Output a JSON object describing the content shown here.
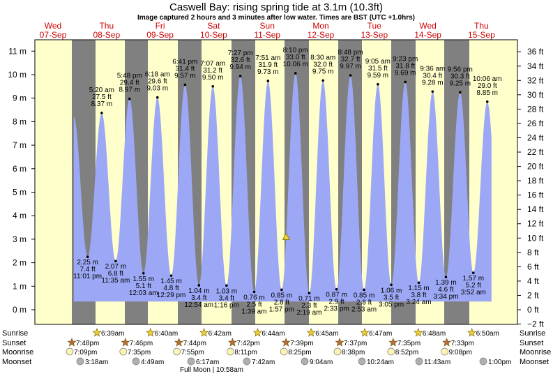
{
  "chart_data": {
    "type": "area",
    "title": "Caswell Bay: rising  spring tide at 3.1m (10.3ft)",
    "subtitle": "Image captured 2 hours and 3 minutes after low water. Times are BST (UTC +1.0hrs)",
    "ylim": [
      -0.6,
      11.4
    ],
    "y_ticks": [
      {
        "v": 0,
        "label": "0 m"
      },
      {
        "v": 1,
        "label": "1 m"
      },
      {
        "v": 2,
        "label": "2 m"
      },
      {
        "v": 3,
        "label": "3 m"
      },
      {
        "v": 4,
        "label": "4 m"
      },
      {
        "v": 5,
        "label": "5 m"
      },
      {
        "v": 6,
        "label": "6 m"
      },
      {
        "v": 7,
        "label": "7 m"
      },
      {
        "v": 8,
        "label": "8 m"
      },
      {
        "v": 9,
        "label": "9 m"
      },
      {
        "v": 10,
        "label": "10 m"
      },
      {
        "v": 11,
        "label": "11 m"
      }
    ],
    "ft_ticks": [
      "−2 ft",
      "0 ft",
      "2 ft",
      "4 ft",
      "6 ft",
      "8 ft",
      "10 ft",
      "12 ft",
      "14 ft",
      "16 ft",
      "18 ft",
      "20 ft",
      "22 ft",
      "24 ft",
      "26 ft",
      "28 ft",
      "30 ft",
      "32 ft",
      "34 ft",
      "36 ft"
    ],
    "days": [
      {
        "day": "Wed",
        "date": "07-Sep"
      },
      {
        "day": "Thu",
        "date": "08-Sep"
      },
      {
        "day": "Fri",
        "date": "09-Sep"
      },
      {
        "day": "Sat",
        "date": "10-Sep"
      },
      {
        "day": "Sun",
        "date": "11-Sep"
      },
      {
        "day": "Mon",
        "date": "12-Sep"
      },
      {
        "day": "Tue",
        "date": "13-Sep"
      },
      {
        "day": "Wed",
        "date": "14-Sep"
      },
      {
        "day": "Thu",
        "date": "15-Sep"
      }
    ],
    "high_tides": [
      {
        "t": 29.33,
        "m": 8.37,
        "lines": [
          "5:20 am",
          "27.5 ft",
          "8.37 m"
        ]
      },
      {
        "t": 41.8,
        "m": 8.97,
        "lines": [
          "5:48 pm",
          "29.4 ft",
          "8.97 m"
        ]
      },
      {
        "t": 54.3,
        "m": 9.03,
        "lines": [
          "6:18 am",
          "29.6 ft",
          "9.03 m"
        ]
      },
      {
        "t": 66.68,
        "m": 9.57,
        "lines": [
          "6:41 pm",
          "31.4 ft",
          "9.57 m"
        ]
      },
      {
        "t": 79.12,
        "m": 9.5,
        "lines": [
          "7:07 am",
          "31.2 ft",
          "9.50 m"
        ]
      },
      {
        "t": 91.45,
        "m": 9.94,
        "lines": [
          "7:27 pm",
          "32.6 ft",
          "9.94 m"
        ]
      },
      {
        "t": 103.85,
        "m": 9.73,
        "lines": [
          "7:51 am",
          "31.9 ft",
          "9.73 m"
        ]
      },
      {
        "t": 116.17,
        "m": 10.06,
        "lines": [
          "8:10 pm",
          "33.0 ft",
          "10.06 m"
        ]
      },
      {
        "t": 128.5,
        "m": 9.75,
        "lines": [
          "8:30 am",
          "32.0 ft",
          "9.75 m"
        ]
      },
      {
        "t": 140.8,
        "m": 9.97,
        "lines": [
          "8:48 pm",
          "32.7 ft",
          "9.97 m"
        ]
      },
      {
        "t": 153.08,
        "m": 9.59,
        "lines": [
          "9:05 am",
          "31.5 ft",
          "9.59 m"
        ]
      },
      {
        "t": 165.38,
        "m": 9.69,
        "lines": [
          "9:23 pm",
          "31.8 ft",
          "9.69 m"
        ]
      },
      {
        "t": 177.6,
        "m": 9.28,
        "lines": [
          "9:36 am",
          "30.4 ft",
          "9.28 m"
        ]
      },
      {
        "t": 189.93,
        "m": 9.25,
        "lines": [
          "9:56 pm",
          "30.3 ft",
          "9.25 m"
        ]
      },
      {
        "t": 202.1,
        "m": 8.85,
        "lines": [
          "10:06 am",
          "29.0 ft",
          "8.85 m"
        ]
      }
    ],
    "low_tides": [
      {
        "t": 23.02,
        "m": 2.25,
        "lines": [
          "2.25 m",
          "7.4 ft",
          "11:01 pm"
        ]
      },
      {
        "t": 35.58,
        "m": 2.07,
        "lines": [
          "2.07 m",
          "6.8 ft",
          "11:35 am"
        ]
      },
      {
        "t": 48.05,
        "m": 1.55,
        "lines": [
          "1.55 m",
          "5.1 ft",
          "12:03 am"
        ]
      },
      {
        "t": 60.48,
        "m": 1.45,
        "lines": [
          "1.45 m",
          "4.8 ft",
          "12:29 pm"
        ]
      },
      {
        "t": 72.9,
        "m": 1.04,
        "lines": [
          "1.04 m",
          "3.4 ft",
          "12:54 am"
        ]
      },
      {
        "t": 85.27,
        "m": 1.03,
        "lines": [
          "1.03 m",
          "3.4 ft",
          "1:16 pm"
        ]
      },
      {
        "t": 97.65,
        "m": 0.76,
        "lines": [
          "0.76 m",
          "2.5 ft",
          "1:39 am"
        ]
      },
      {
        "t": 109.95,
        "m": 0.85,
        "lines": [
          "0.85 m",
          "2.8 ft",
          "1:57 pm"
        ]
      },
      {
        "t": 122.32,
        "m": 0.71,
        "lines": [
          "0.71 m",
          "2.3 ft",
          "2:19 am"
        ]
      },
      {
        "t": 134.55,
        "m": 0.87,
        "lines": [
          "0.87 m",
          "2.9 ft",
          "2:33 pm"
        ]
      },
      {
        "t": 146.88,
        "m": 0.85,
        "lines": [
          "0.85 m",
          "2.8 ft",
          "2:53 am"
        ]
      },
      {
        "t": 159.08,
        "m": 1.06,
        "lines": [
          "1.06 m",
          "3.5 ft",
          "3:05 pm"
        ]
      },
      {
        "t": 171.4,
        "m": 1.15,
        "lines": [
          "1.15 m",
          "3.8 ft",
          "3:24 am"
        ]
      },
      {
        "t": 183.57,
        "m": 1.39,
        "lines": [
          "1.39 m",
          "4.6 ft",
          "3:34 pm"
        ]
      },
      {
        "t": 195.87,
        "m": 1.57,
        "lines": [
          "1.57 m",
          "5.2 ft",
          "3:52 am"
        ]
      }
    ],
    "current": {
      "t": 112.0,
      "m": 3.1
    },
    "sunrise": [
      "6:39am",
      "6:40am",
      "6:42am",
      "6:44am",
      "6:45am",
      "6:47am",
      "6:48am",
      "6:50am"
    ],
    "sunset": [
      "7:48pm",
      "7:46pm",
      "7:44pm",
      "7:42pm",
      "7:39pm",
      "7:37pm",
      "7:35pm",
      "7:33pm"
    ],
    "moonrise": [
      "7:09pm",
      "7:35pm",
      "7:55pm",
      "8:11pm",
      "8:25pm",
      "8:38pm",
      "8:52pm",
      "9:08pm"
    ],
    "moonset": [
      "3:18am",
      "4:49am",
      "6:17am",
      "7:42am",
      "9:04am",
      "10:24am",
      "11:43am",
      "1:00pm"
    ],
    "full_moon": "Full Moon | 10:58am",
    "row_labels": {
      "sunrise": "Sunrise",
      "sunset": "Sunset",
      "moonrise": "Moonrise",
      "moonset": "Moonset"
    },
    "colors": {
      "tide": "#9ca8f5",
      "day": "#ffffcc",
      "night": "#808080",
      "sun": "#f0d030",
      "sunset": "#b86a3c",
      "moonrise": "#fbf5b5",
      "moonset": "#b0b0b0"
    }
  }
}
